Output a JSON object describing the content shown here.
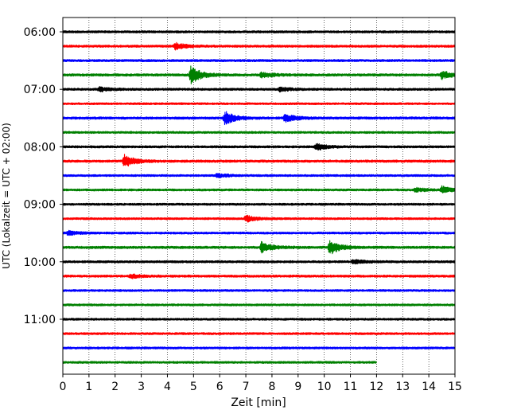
{
  "chart_data": {
    "type": "line",
    "title": "",
    "xlabel": "Zeit  [min]",
    "ylabel": "UTC (Lokalzeit = UTC + 02:00)",
    "xlim": [
      0,
      15
    ],
    "x_ticks": [
      "0",
      "1",
      "2",
      "3",
      "4",
      "5",
      "6",
      "7",
      "8",
      "9",
      "10",
      "11",
      "12",
      "13",
      "14",
      "15"
    ],
    "y_ticks": [
      "06:00",
      "07:00",
      "08:00",
      "09:00",
      "10:00",
      "11:00"
    ],
    "grid": "vertical-dotted",
    "trace_interval_min": 15,
    "start_time": "06:00",
    "colors": [
      "#000000",
      "#ff0000",
      "#0000ff",
      "#008000"
    ],
    "series": [
      {
        "start": "06:00",
        "color": "#000000",
        "amplitude": 0.28,
        "events": []
      },
      {
        "start": "06:15",
        "color": "#ff0000",
        "amplitude": 0.28,
        "events": [
          {
            "t": 4.3,
            "amp": 0.8
          }
        ]
      },
      {
        "start": "06:30",
        "color": "#0000ff",
        "amplitude": 0.28,
        "events": []
      },
      {
        "start": "06:45",
        "color": "#008000",
        "amplitude": 0.3,
        "events": [
          {
            "t": 4.9,
            "amp": 2.2
          },
          {
            "t": 7.6,
            "amp": 0.7
          },
          {
            "t": 14.5,
            "amp": 1.0
          }
        ]
      },
      {
        "start": "07:00",
        "color": "#000000",
        "amplitude": 0.28,
        "events": [
          {
            "t": 1.4,
            "amp": 0.5
          },
          {
            "t": 8.3,
            "amp": 0.5
          }
        ]
      },
      {
        "start": "07:15",
        "color": "#ff0000",
        "amplitude": 0.25,
        "events": []
      },
      {
        "start": "07:30",
        "color": "#0000ff",
        "amplitude": 0.3,
        "events": [
          {
            "t": 6.2,
            "amp": 1.6
          },
          {
            "t": 8.5,
            "amp": 1.0
          }
        ]
      },
      {
        "start": "07:45",
        "color": "#008000",
        "amplitude": 0.26,
        "events": []
      },
      {
        "start": "08:00",
        "color": "#000000",
        "amplitude": 0.28,
        "events": [
          {
            "t": 9.7,
            "amp": 0.8
          }
        ]
      },
      {
        "start": "08:15",
        "color": "#ff0000",
        "amplitude": 0.3,
        "events": [
          {
            "t": 2.35,
            "amp": 1.5
          }
        ]
      },
      {
        "start": "08:30",
        "color": "#0000ff",
        "amplitude": 0.26,
        "events": [
          {
            "t": 5.9,
            "amp": 0.5
          }
        ]
      },
      {
        "start": "08:45",
        "color": "#008000",
        "amplitude": 0.26,
        "events": [
          {
            "t": 13.5,
            "amp": 0.5
          },
          {
            "t": 14.5,
            "amp": 0.8
          }
        ]
      },
      {
        "start": "09:00",
        "color": "#000000",
        "amplitude": 0.26,
        "events": []
      },
      {
        "start": "09:15",
        "color": "#ff0000",
        "amplitude": 0.26,
        "events": [
          {
            "t": 7.0,
            "amp": 0.8
          }
        ]
      },
      {
        "start": "09:30",
        "color": "#0000ff",
        "amplitude": 0.26,
        "events": [
          {
            "t": 0.2,
            "amp": 0.5
          }
        ]
      },
      {
        "start": "09:45",
        "color": "#008000",
        "amplitude": 0.3,
        "events": [
          {
            "t": 7.6,
            "amp": 1.3
          },
          {
            "t": 10.2,
            "amp": 1.8
          }
        ]
      },
      {
        "start": "10:00",
        "color": "#000000",
        "amplitude": 0.28,
        "events": [
          {
            "t": 11.1,
            "amp": 0.5
          }
        ]
      },
      {
        "start": "10:15",
        "color": "#ff0000",
        "amplitude": 0.28,
        "events": [
          {
            "t": 2.6,
            "amp": 0.5
          }
        ]
      },
      {
        "start": "10:30",
        "color": "#0000ff",
        "amplitude": 0.26,
        "events": []
      },
      {
        "start": "10:45",
        "color": "#008000",
        "amplitude": 0.26,
        "events": []
      },
      {
        "start": "11:00",
        "color": "#000000",
        "amplitude": 0.26,
        "events": []
      },
      {
        "start": "11:15",
        "color": "#ff0000",
        "amplitude": 0.26,
        "events": []
      },
      {
        "start": "11:30",
        "color": "#0000ff",
        "amplitude": 0.26,
        "events": []
      },
      {
        "start": "11:45",
        "color": "#008000",
        "amplitude": 0.26,
        "end_min": 12.0,
        "events": []
      }
    ]
  }
}
